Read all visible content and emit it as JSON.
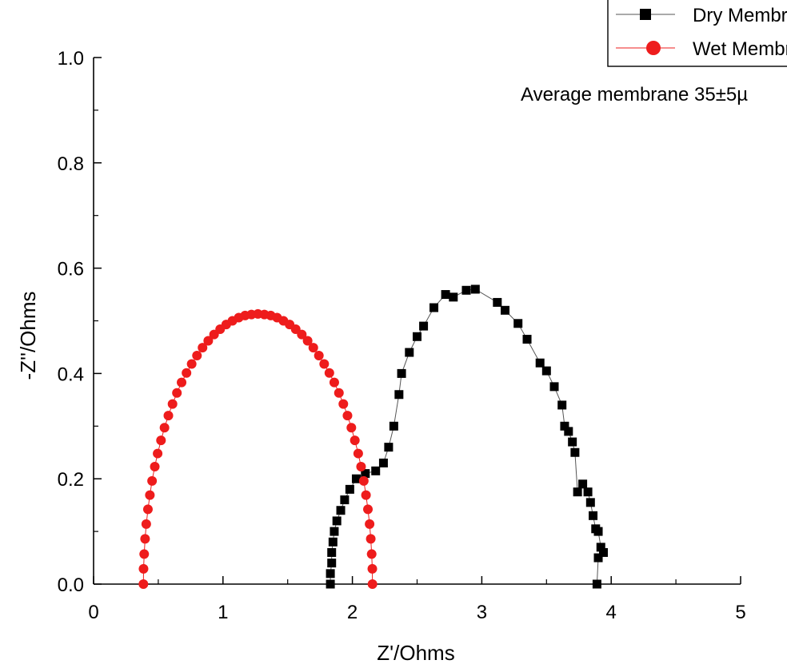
{
  "chart_data": {
    "type": "scatter",
    "xlabel": "Z'/Ohms",
    "ylabel": "-Z''/Ohms",
    "xlim": [
      0,
      5
    ],
    "ylim": [
      0,
      1.0
    ],
    "xticks": [
      "0",
      "1",
      "2",
      "3",
      "4",
      "5"
    ],
    "yticks": [
      "0.0",
      "0.2",
      "0.4",
      "0.6",
      "0.8",
      "1.0"
    ],
    "grid": false,
    "legend_position": "top-right",
    "annotation": "Average membrane 35±5µ",
    "series": [
      {
        "name": "Dry Membrane",
        "marker": "square",
        "color": "#000000",
        "line_color": "#555555",
        "points": [
          [
            1.83,
            0.0
          ],
          [
            1.83,
            0.02
          ],
          [
            1.84,
            0.04
          ],
          [
            1.84,
            0.06
          ],
          [
            1.85,
            0.08
          ],
          [
            1.86,
            0.1
          ],
          [
            1.88,
            0.12
          ],
          [
            1.91,
            0.14
          ],
          [
            1.94,
            0.16
          ],
          [
            1.98,
            0.18
          ],
          [
            2.03,
            0.2
          ],
          [
            2.1,
            0.21
          ],
          [
            2.18,
            0.215
          ],
          [
            2.24,
            0.23
          ],
          [
            2.28,
            0.26
          ],
          [
            2.32,
            0.3
          ],
          [
            2.36,
            0.36
          ],
          [
            2.38,
            0.4
          ],
          [
            2.44,
            0.44
          ],
          [
            2.5,
            0.47
          ],
          [
            2.55,
            0.49
          ],
          [
            2.63,
            0.525
          ],
          [
            2.72,
            0.55
          ],
          [
            2.78,
            0.545
          ],
          [
            2.88,
            0.558
          ],
          [
            2.95,
            0.56
          ],
          [
            3.12,
            0.535
          ],
          [
            3.18,
            0.52
          ],
          [
            3.28,
            0.495
          ],
          [
            3.35,
            0.465
          ],
          [
            3.45,
            0.42
          ],
          [
            3.5,
            0.405
          ],
          [
            3.56,
            0.375
          ],
          [
            3.62,
            0.34
          ],
          [
            3.64,
            0.3
          ],
          [
            3.67,
            0.29
          ],
          [
            3.7,
            0.27
          ],
          [
            3.72,
            0.25
          ],
          [
            3.74,
            0.175
          ],
          [
            3.78,
            0.19
          ],
          [
            3.82,
            0.175
          ],
          [
            3.84,
            0.155
          ],
          [
            3.86,
            0.13
          ],
          [
            3.88,
            0.105
          ],
          [
            3.9,
            0.1
          ],
          [
            3.92,
            0.07
          ],
          [
            3.94,
            0.06
          ],
          [
            3.9,
            0.05
          ],
          [
            3.89,
            0.0
          ]
        ]
      },
      {
        "name": "Wet Membrane",
        "marker": "circle",
        "color": "#ee1c1c",
        "line_color": "#ee1c1c"
      }
    ]
  }
}
